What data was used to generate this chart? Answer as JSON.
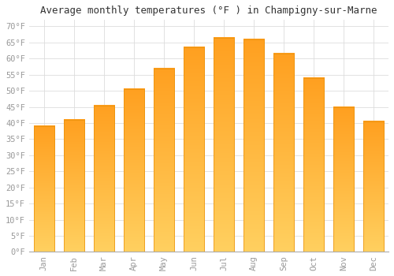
{
  "title": "Average monthly temperatures (°F ) in Champigny-sur-Marne",
  "months": [
    "Jan",
    "Feb",
    "Mar",
    "Apr",
    "May",
    "Jun",
    "Jul",
    "Aug",
    "Sep",
    "Oct",
    "Nov",
    "Dec"
  ],
  "values": [
    39,
    41,
    45.5,
    50.5,
    57,
    63.5,
    66.5,
    66,
    61.5,
    54,
    45,
    40.5
  ],
  "bar_color_top": "#FFA020",
  "bar_color_bottom": "#FFD060",
  "bar_edge_color": "#E8900A",
  "background_color": "#FFFFFF",
  "grid_color": "#DDDDDD",
  "ylim": [
    0,
    72
  ],
  "yticks": [
    0,
    5,
    10,
    15,
    20,
    25,
    30,
    35,
    40,
    45,
    50,
    55,
    60,
    65,
    70
  ],
  "title_fontsize": 9,
  "tick_fontsize": 7.5,
  "tick_font": "monospace",
  "tick_color": "#999999"
}
